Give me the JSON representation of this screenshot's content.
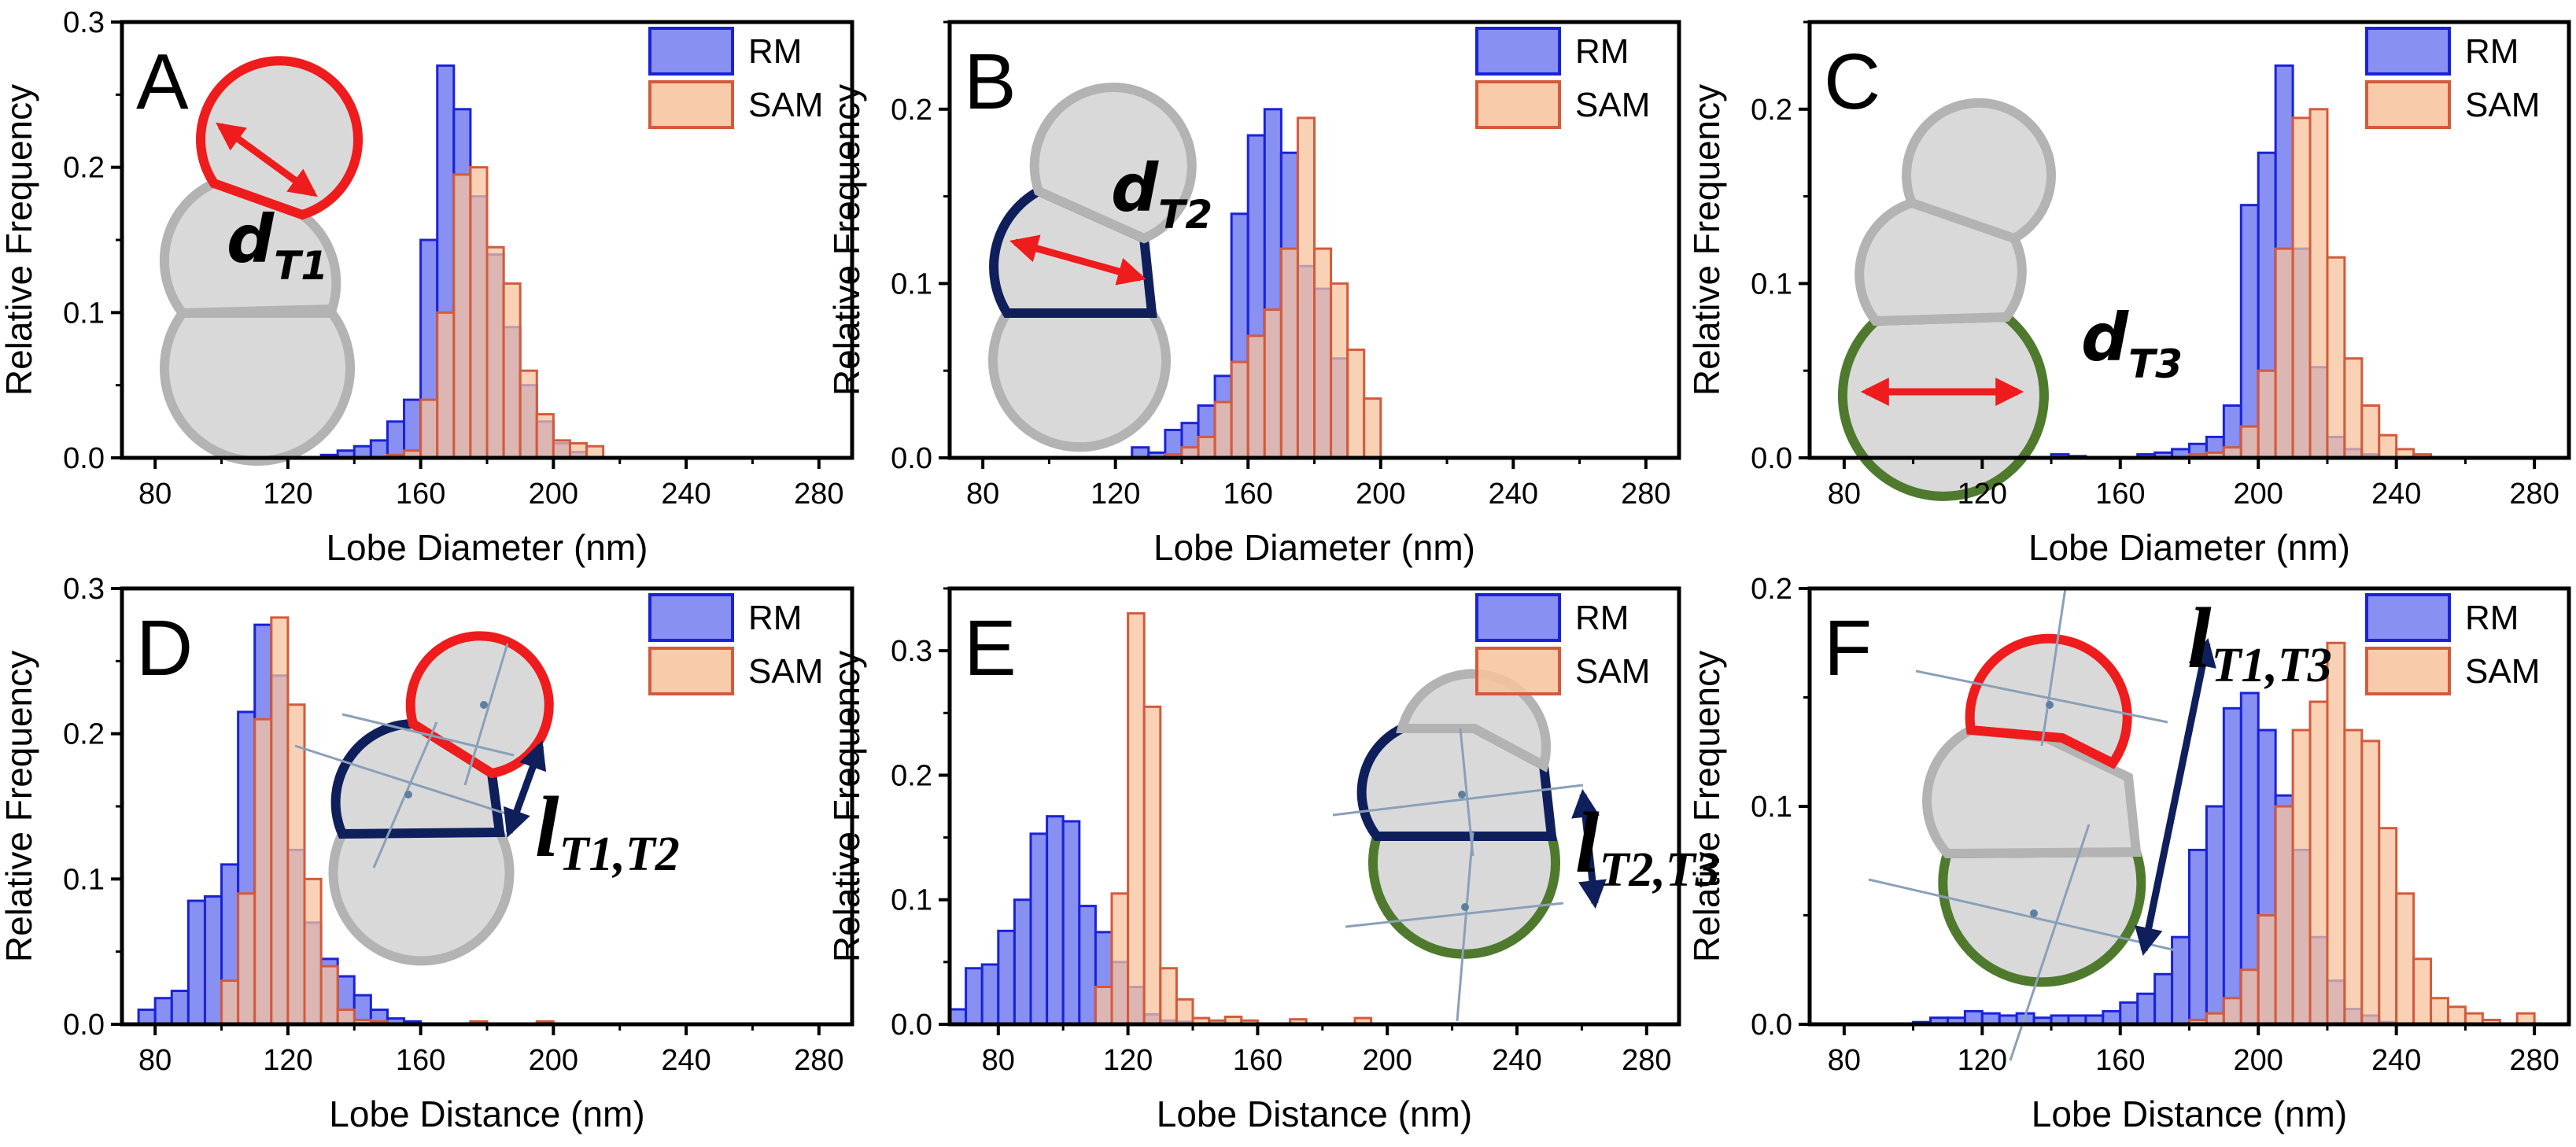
{
  "colors": {
    "rm_fill": "#7b84f0",
    "rm_edge": "#1a22d8",
    "sam_fill": "#f7c39c",
    "sam_edge": "#d45a3c",
    "lobe_fill": "#d9d9d9",
    "lobe_edge": "#b3b3b3",
    "lobe_t1": "#ee1c1c",
    "lobe_t2": "#0f1f5c",
    "lobe_t3": "#4f7a2e",
    "arrow_red": "#ee1c1c",
    "arrow_navy": "#0f1f5c"
  },
  "legend": {
    "rm": "RM",
    "sam": "SAM"
  },
  "chart_data": [
    {
      "type": "bar",
      "panel": "A",
      "label_main": "d",
      "label_sub": "T1",
      "xlabel": "Lobe Diameter (nm)",
      "ylabel": "Relative Frequency",
      "xlim": [
        70,
        290
      ],
      "ylim": [
        0,
        0.3
      ],
      "bin_width": 5,
      "xticks": [
        80,
        120,
        160,
        200,
        240,
        280
      ],
      "yticks": [
        0.0,
        0.1,
        0.2,
        0.3
      ],
      "bins": [
        130,
        135,
        140,
        145,
        150,
        155,
        160,
        165,
        170,
        175,
        180,
        185,
        190,
        195,
        200,
        205,
        210
      ],
      "series": [
        {
          "name": "RM",
          "values": [
            0.002,
            0.005,
            0.008,
            0.012,
            0.025,
            0.04,
            0.15,
            0.27,
            0.24,
            0.18,
            0.14,
            0.09,
            0.05,
            0.025,
            0.01,
            0.004,
            0.0
          ]
        },
        {
          "name": "SAM",
          "values": [
            0.0,
            0.0,
            0.0,
            0.0,
            0.002,
            0.005,
            0.04,
            0.1,
            0.195,
            0.2,
            0.145,
            0.12,
            0.06,
            0.03,
            0.012,
            0.01,
            0.008
          ]
        }
      ]
    },
    {
      "type": "bar",
      "panel": "B",
      "label_main": "d",
      "label_sub": "T2",
      "xlabel": "Lobe Diameter (nm)",
      "ylabel": "Relative Frequency",
      "xlim": [
        70,
        290
      ],
      "ylim": [
        0,
        0.25
      ],
      "bin_width": 5,
      "xticks": [
        80,
        120,
        160,
        200,
        240,
        280
      ],
      "yticks": [
        0.0,
        0.1,
        0.2
      ],
      "bins": [
        125,
        130,
        135,
        140,
        145,
        150,
        155,
        160,
        165,
        170,
        175,
        180,
        185,
        190,
        195
      ],
      "series": [
        {
          "name": "RM",
          "values": [
            0.006,
            0.003,
            0.016,
            0.02,
            0.03,
            0.047,
            0.14,
            0.185,
            0.2,
            0.175,
            0.11,
            0.097,
            0.057,
            0.0,
            0.0
          ]
        },
        {
          "name": "SAM",
          "values": [
            0.0,
            0.0,
            0.002,
            0.006,
            0.012,
            0.032,
            0.055,
            0.07,
            0.085,
            0.12,
            0.195,
            0.12,
            0.1,
            0.062,
            0.034
          ]
        }
      ]
    },
    {
      "type": "bar",
      "panel": "C",
      "label_main": "d",
      "label_sub": "T3",
      "xlabel": "Lobe Diameter (nm)",
      "ylabel": "Relative Frequency",
      "xlim": [
        70,
        290
      ],
      "ylim": [
        0,
        0.25
      ],
      "bin_width": 5,
      "xticks": [
        80,
        120,
        160,
        200,
        240,
        280
      ],
      "yticks": [
        0.0,
        0.1,
        0.2
      ],
      "bins": [
        140,
        145,
        150,
        155,
        160,
        165,
        170,
        175,
        180,
        185,
        190,
        195,
        200,
        205,
        210,
        215,
        220,
        225,
        230,
        235,
        240,
        245
      ],
      "series": [
        {
          "name": "RM",
          "values": [
            0.002,
            0.001,
            0.0,
            0.0,
            0.0,
            0.002,
            0.003,
            0.005,
            0.008,
            0.012,
            0.03,
            0.145,
            0.175,
            0.225,
            0.12,
            0.052,
            0.012,
            0.005,
            0.002,
            0.0,
            0.0,
            0.0
          ]
        },
        {
          "name": "SAM",
          "values": [
            0.0,
            0.0,
            0.0,
            0.0,
            0.0,
            0.0,
            0.0,
            0.0,
            0.002,
            0.003,
            0.006,
            0.018,
            0.05,
            0.12,
            0.195,
            0.2,
            0.115,
            0.057,
            0.03,
            0.013,
            0.005,
            0.002
          ]
        }
      ]
    },
    {
      "type": "bar",
      "panel": "D",
      "label_main": "l",
      "label_sub": "T1,T2",
      "xlabel": "Lobe Distance (nm)",
      "ylabel": "Relative Frequency",
      "xlim": [
        70,
        290
      ],
      "ylim": [
        0,
        0.3
      ],
      "bin_width": 5,
      "xticks": [
        80,
        120,
        160,
        200,
        240,
        280
      ],
      "yticks": [
        0.0,
        0.1,
        0.2,
        0.3
      ],
      "bins": [
        75,
        80,
        85,
        90,
        95,
        100,
        105,
        110,
        115,
        120,
        125,
        130,
        135,
        140,
        145,
        150,
        155,
        160,
        165,
        170,
        175,
        180,
        185,
        190,
        195
      ],
      "series": [
        {
          "name": "RM",
          "values": [
            0.01,
            0.018,
            0.023,
            0.085,
            0.088,
            0.11,
            0.215,
            0.275,
            0.24,
            0.12,
            0.07,
            0.045,
            0.033,
            0.02,
            0.01,
            0.004,
            0.002,
            0.0,
            0.0,
            0.0,
            0.0,
            0.0,
            0.0,
            0.0,
            0.0
          ]
        },
        {
          "name": "SAM",
          "values": [
            0.0,
            0.0,
            0.0,
            0.0,
            0.0,
            0.03,
            0.09,
            0.21,
            0.28,
            0.22,
            0.1,
            0.04,
            0.01,
            0.003,
            0.002,
            0.0,
            0.0,
            0.0,
            0.0,
            0.0,
            0.002,
            0.0,
            0.0,
            0.0,
            0.002
          ]
        }
      ]
    },
    {
      "type": "bar",
      "panel": "E",
      "label_main": "l",
      "label_sub": "T2,T3",
      "xlabel": "Lobe Distance (nm)",
      "ylabel": "Relative Frequency",
      "xlim": [
        65,
        290
      ],
      "ylim": [
        0,
        0.35
      ],
      "bin_width": 5,
      "xticks": [
        80,
        120,
        160,
        200,
        240,
        280
      ],
      "yticks": [
        0.0,
        0.1,
        0.2,
        0.3
      ],
      "bins": [
        65,
        70,
        75,
        80,
        85,
        90,
        95,
        100,
        105,
        110,
        115,
        120,
        125,
        130,
        135,
        140,
        145,
        150,
        155,
        160,
        165,
        170,
        175,
        180,
        185,
        190
      ],
      "series": [
        {
          "name": "RM",
          "values": [
            0.012,
            0.045,
            0.048,
            0.075,
            0.1,
            0.153,
            0.167,
            0.163,
            0.095,
            0.074,
            0.05,
            0.03,
            0.008,
            0.003,
            0.002,
            0.0,
            0.0,
            0.0,
            0.0,
            0.0,
            0.0,
            0.0,
            0.0,
            0.0,
            0.0,
            0.0
          ]
        },
        {
          "name": "SAM",
          "values": [
            0.0,
            0.0,
            0.0,
            0.0,
            0.0,
            0.0,
            0.0,
            0.0,
            0.0,
            0.03,
            0.105,
            0.33,
            0.255,
            0.045,
            0.02,
            0.005,
            0.003,
            0.006,
            0.003,
            0.0,
            0.0,
            0.004,
            0.0,
            0.0,
            0.0,
            0.005
          ]
        }
      ]
    },
    {
      "type": "bar",
      "panel": "F",
      "label_main": "l",
      "label_sub": "T1,T3",
      "xlabel": "Lobe Distance (nm)",
      "ylabel": "Relative Frequency",
      "xlim": [
        70,
        290
      ],
      "ylim": [
        0,
        0.2
      ],
      "bin_width": 5,
      "xticks": [
        80,
        120,
        160,
        200,
        240,
        280
      ],
      "yticks": [
        0.0,
        0.1,
        0.2
      ],
      "bins": [
        100,
        105,
        110,
        115,
        120,
        125,
        130,
        135,
        140,
        145,
        150,
        155,
        160,
        165,
        170,
        175,
        180,
        185,
        190,
        195,
        200,
        205,
        210,
        215,
        220,
        225,
        230,
        235,
        240,
        245,
        250,
        255,
        260,
        265,
        270,
        275
      ],
      "series": [
        {
          "name": "RM",
          "values": [
            0.001,
            0.003,
            0.003,
            0.006,
            0.005,
            0.004,
            0.005,
            0.003,
            0.004,
            0.004,
            0.004,
            0.006,
            0.01,
            0.014,
            0.023,
            0.04,
            0.08,
            0.1,
            0.145,
            0.152,
            0.135,
            0.105,
            0.08,
            0.04,
            0.02,
            0.007,
            0.004,
            0.001,
            0.0,
            0.0,
            0.0,
            0.0,
            0.0,
            0.0,
            0.0,
            0.0
          ]
        },
        {
          "name": "SAM",
          "values": [
            0.0,
            0.0,
            0.0,
            0.0,
            0.0,
            0.0,
            0.0,
            0.0,
            0.0,
            0.0,
            0.0,
            0.0,
            0.0,
            0.0,
            0.0,
            0.0,
            0.002,
            0.005,
            0.012,
            0.025,
            0.05,
            0.1,
            0.135,
            0.148,
            0.175,
            0.135,
            0.13,
            0.09,
            0.06,
            0.03,
            0.012,
            0.008,
            0.005,
            0.002,
            0.0,
            0.005
          ]
        }
      ]
    }
  ]
}
